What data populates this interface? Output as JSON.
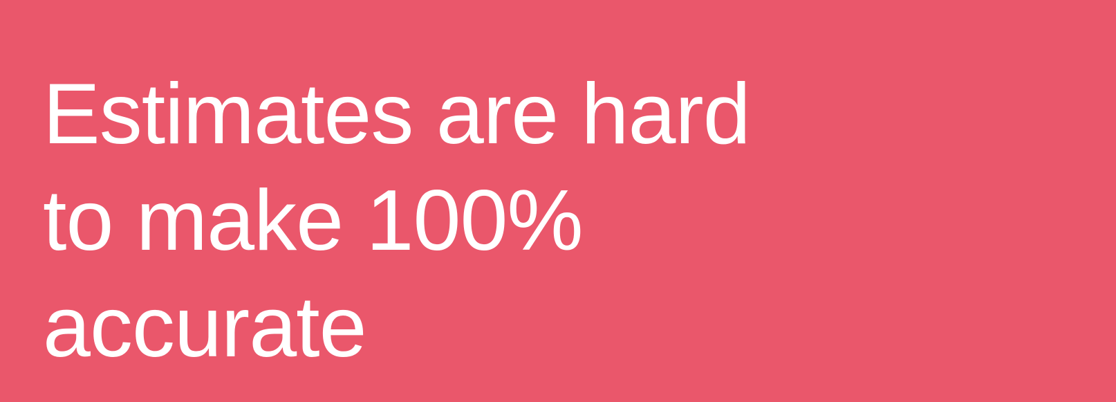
{
  "colors": {
    "background": "#ea576b",
    "text": "#ffffff"
  },
  "headline": {
    "lines": [
      "Estimates are hard",
      "to make 100%",
      "accurate"
    ]
  }
}
